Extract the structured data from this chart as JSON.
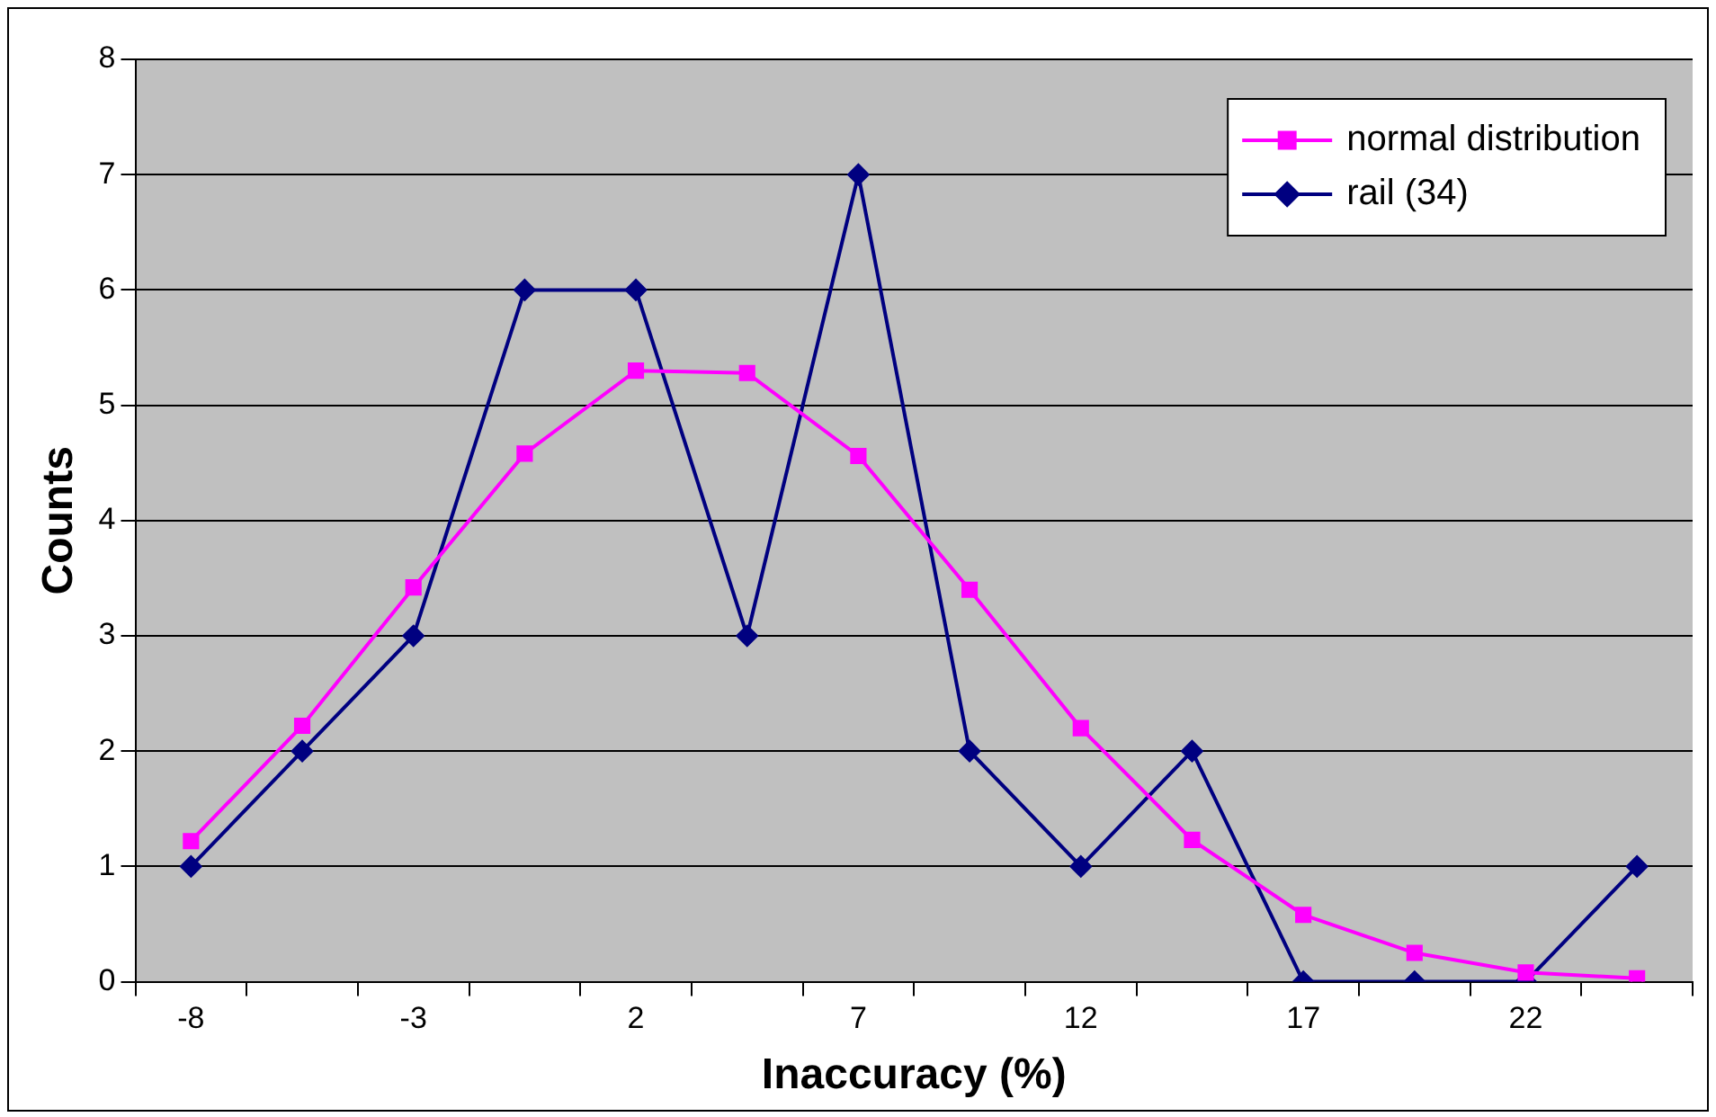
{
  "chart_data": {
    "type": "line",
    "xlabel": "Inaccuracy (%)",
    "ylabel": "Counts",
    "categories": [
      "-8",
      null,
      "-3",
      null,
      "2",
      null,
      "7",
      null,
      "12",
      null,
      "17",
      null,
      "22",
      null
    ],
    "series": [
      {
        "name": "normal distribution",
        "color": "#ff00ff",
        "marker": "square",
        "values": [
          1.22,
          2.22,
          3.42,
          4.58,
          5.3,
          5.28,
          4.56,
          3.4,
          2.2,
          1.23,
          0.58,
          0.25,
          0.08,
          0.03
        ]
      },
      {
        "name": "rail (34)",
        "color": "#000080",
        "marker": "diamond",
        "values": [
          1,
          2,
          3,
          6,
          6,
          3,
          7,
          2,
          1,
          2,
          0,
          0,
          0,
          1
        ]
      }
    ],
    "ylim": [
      0,
      8
    ],
    "yticks": [
      0,
      1,
      2,
      3,
      4,
      5,
      6,
      7,
      8
    ],
    "grid": "y",
    "legend": "top right"
  }
}
